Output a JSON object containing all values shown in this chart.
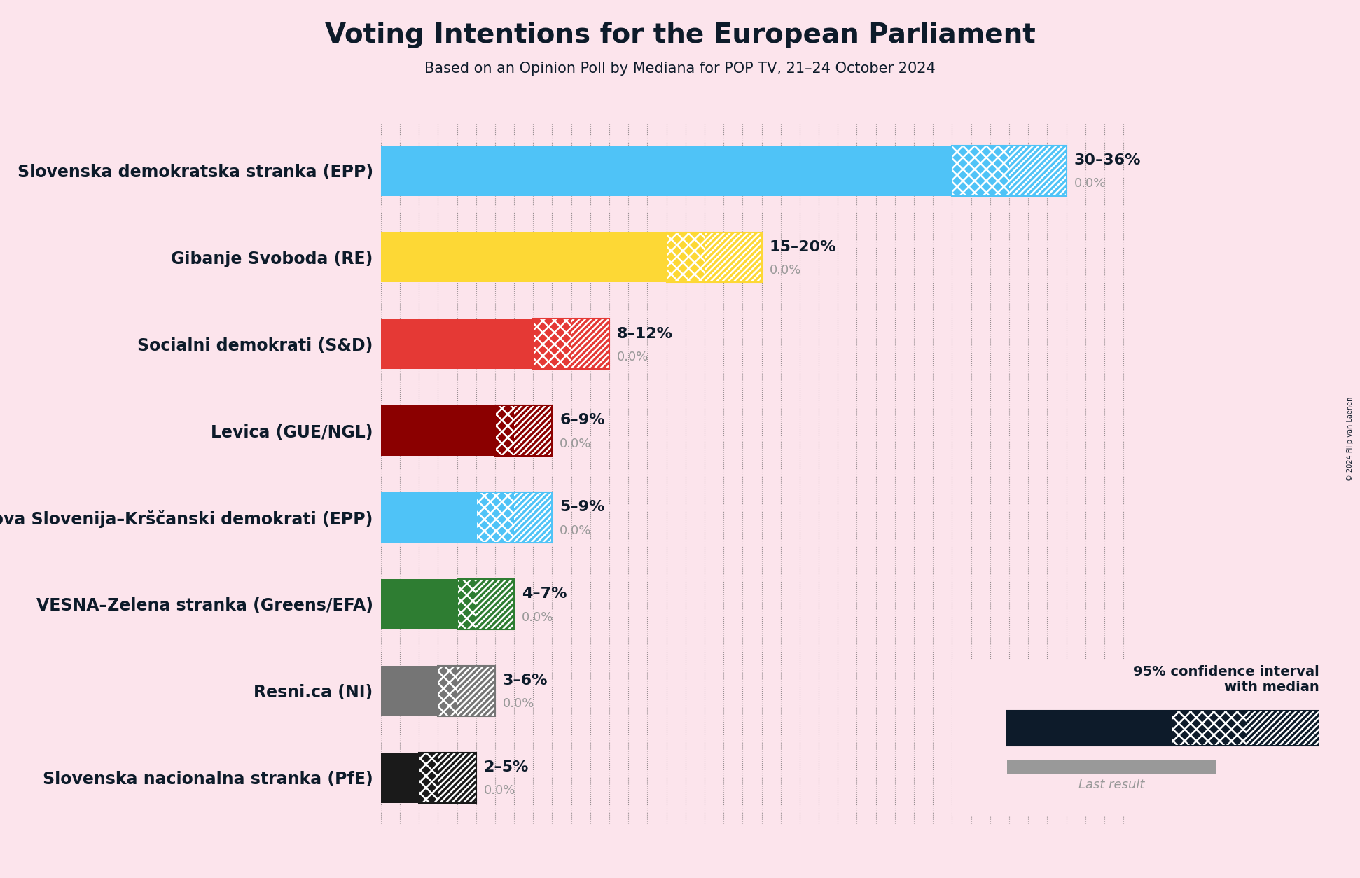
{
  "title": "Voting Intentions for the European Parliament",
  "subtitle": "Based on an Opinion Poll by Mediana for POP TV, 21–24 October 2024",
  "copyright": "© 2024 Filip van Laenen",
  "background_color": "#fce4ec",
  "text_color": "#0d1b2a",
  "parties": [
    {
      "name": "Slovenska demokratska stranka (EPP)",
      "low": 30,
      "high": 36,
      "median": 33,
      "last": 0.0,
      "color": "#4fc3f7",
      "label": "30–36%"
    },
    {
      "name": "Gibanje Svoboda (RE)",
      "low": 15,
      "high": 20,
      "median": 17,
      "last": 0.0,
      "color": "#fdd835",
      "label": "15–20%"
    },
    {
      "name": "Socialni demokrati (S&D)",
      "low": 8,
      "high": 12,
      "median": 10,
      "last": 0.0,
      "color": "#e53935",
      "label": "8–12%"
    },
    {
      "name": "Levica (GUE/NGL)",
      "low": 6,
      "high": 9,
      "median": 7,
      "last": 0.0,
      "color": "#8b0000",
      "label": "6–9%"
    },
    {
      "name": "Nova Slovenija–Krščanski demokrati (EPP)",
      "low": 5,
      "high": 9,
      "median": 7,
      "last": 0.0,
      "color": "#4fc3f7",
      "label": "5–9%"
    },
    {
      "name": "VESNA–Zelena stranka (Greens/EFA)",
      "low": 4,
      "high": 7,
      "median": 5,
      "last": 0.0,
      "color": "#2e7d32",
      "label": "4–7%"
    },
    {
      "name": "Resni.ca (NI)",
      "low": 3,
      "high": 6,
      "median": 4,
      "last": 0.0,
      "color": "#757575",
      "label": "3–6%"
    },
    {
      "name": "Slovenska nacionalna stranka (PfE)",
      "low": 2,
      "high": 5,
      "median": 3,
      "last": 0.0,
      "color": "#1a1a1a",
      "label": "2–5%"
    }
  ],
  "xlim": [
    0,
    40
  ],
  "bar_height": 0.58,
  "navy_color": "#0d1b2a",
  "gray_color": "#999999",
  "label_fontsize": 16,
  "title_fontsize": 28,
  "subtitle_fontsize": 15,
  "party_fontsize": 17
}
